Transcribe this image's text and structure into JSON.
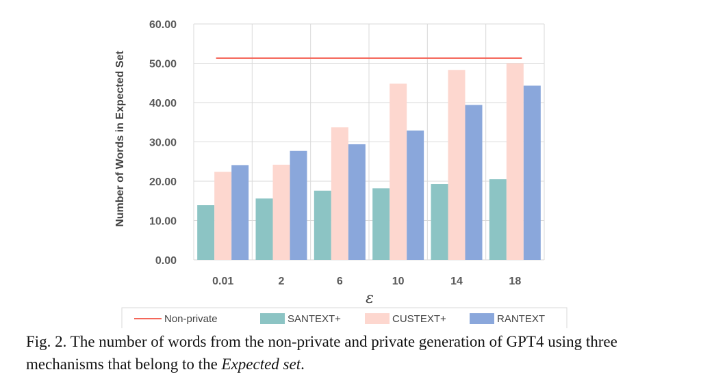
{
  "chart_data": {
    "type": "bar",
    "categories": [
      "0.01",
      "2",
      "6",
      "10",
      "14",
      "18"
    ],
    "series": [
      {
        "name": "SANTEXT+",
        "color": "#8cc4c4",
        "values": [
          13.9,
          15.6,
          17.6,
          18.2,
          19.3,
          20.5
        ]
      },
      {
        "name": "CUSTEXT+",
        "color": "#fdd7cf",
        "values": [
          22.4,
          24.2,
          33.7,
          44.8,
          48.3,
          50.0
        ]
      },
      {
        "name": "RANTEXT",
        "color": "#8aa7db",
        "values": [
          24.1,
          27.7,
          29.4,
          32.9,
          39.4,
          44.3
        ]
      }
    ],
    "reference_line": {
      "name": "Non-private",
      "value": 51.3,
      "color": "#f4675a"
    },
    "xlabel": "ε",
    "ylabel": "Number of  Words in Expected  Set",
    "ylim": [
      0,
      60
    ],
    "yticks": [
      "0.00",
      "10.00",
      "20.00",
      "30.00",
      "40.00",
      "50.00",
      "60.00"
    ],
    "grid": true,
    "legend_position": "bottom"
  },
  "caption": {
    "prefix": "Fig. 2.  The number of words from the non-private and private generation of GPT4 using three mechanisms that belong to the ",
    "emphasis": "Expected set",
    "suffix": "."
  }
}
